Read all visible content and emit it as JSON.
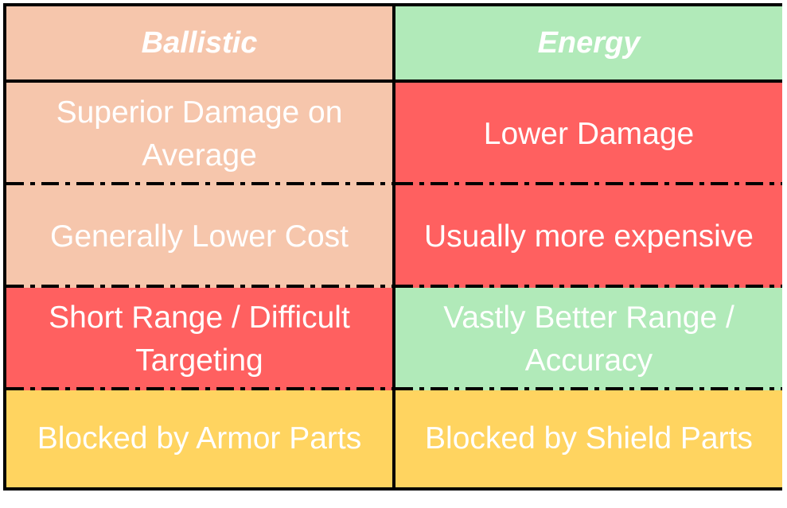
{
  "table": {
    "headers": [
      "Ballistic",
      "Energy"
    ],
    "rows": [
      [
        "Superior Damage on Average",
        "Lower Damage"
      ],
      [
        "Generally Lower Cost",
        "Usually more expensive"
      ],
      [
        "Short Range / Difficult Targeting",
        "Vastly Better Range / Accuracy"
      ],
      [
        "Blocked by Armor Parts",
        "Blocked by Shield Parts"
      ]
    ],
    "cell_colors": [
      [
        "#f6c6ac",
        "#b1eab9"
      ],
      [
        "#f6c6ac",
        "#ff6060"
      ],
      [
        "#f6c6ac",
        "#ff6060"
      ],
      [
        "#ff6060",
        "#b1eab9"
      ],
      [
        "#ffd460",
        "#ffd460"
      ]
    ]
  }
}
